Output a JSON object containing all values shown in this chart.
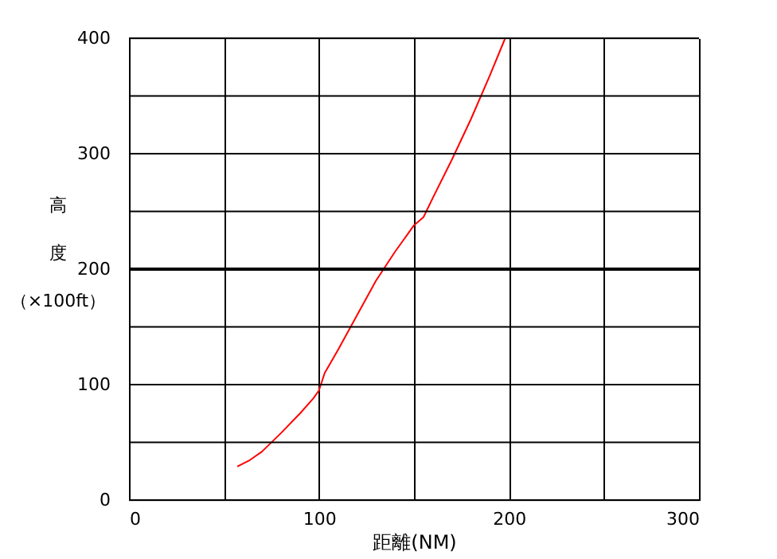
{
  "chart_data": {
    "type": "line",
    "xlabel": "距離(NM)",
    "ylabel": "高度（×100ft）",
    "x": [
      57,
      63,
      70,
      80,
      90,
      97,
      100,
      103,
      110,
      120,
      130,
      140,
      150,
      155,
      160,
      170,
      180,
      190,
      198
    ],
    "series": [
      {
        "color": "#ff0000",
        "values": [
          29,
          34,
          42,
          58,
          75,
          88,
          95,
          110,
          130,
          160,
          190,
          215,
          238,
          245,
          262,
          295,
          330,
          368,
          400
        ]
      }
    ],
    "xlim": [
      0,
      300
    ],
    "xticks": [
      0,
      {
        "value": 50,
        "label": null
      },
      100,
      {
        "value": 150,
        "label": null
      },
      200,
      {
        "value": 250,
        "label": null
      },
      300
    ],
    "ylim": [
      0,
      400
    ],
    "yticks": [
      0,
      {
        "value": 50,
        "label": null
      },
      100,
      {
        "value": 150,
        "label": null
      },
      200,
      {
        "value": 250,
        "label": null
      },
      300,
      {
        "value": 350,
        "label": null
      },
      400
    ],
    "ref_lines": [
      {
        "axis": "y",
        "value": 200,
        "color": "#000000"
      }
    ],
    "grid": true,
    "marker": "none",
    "line_style": "solid"
  }
}
